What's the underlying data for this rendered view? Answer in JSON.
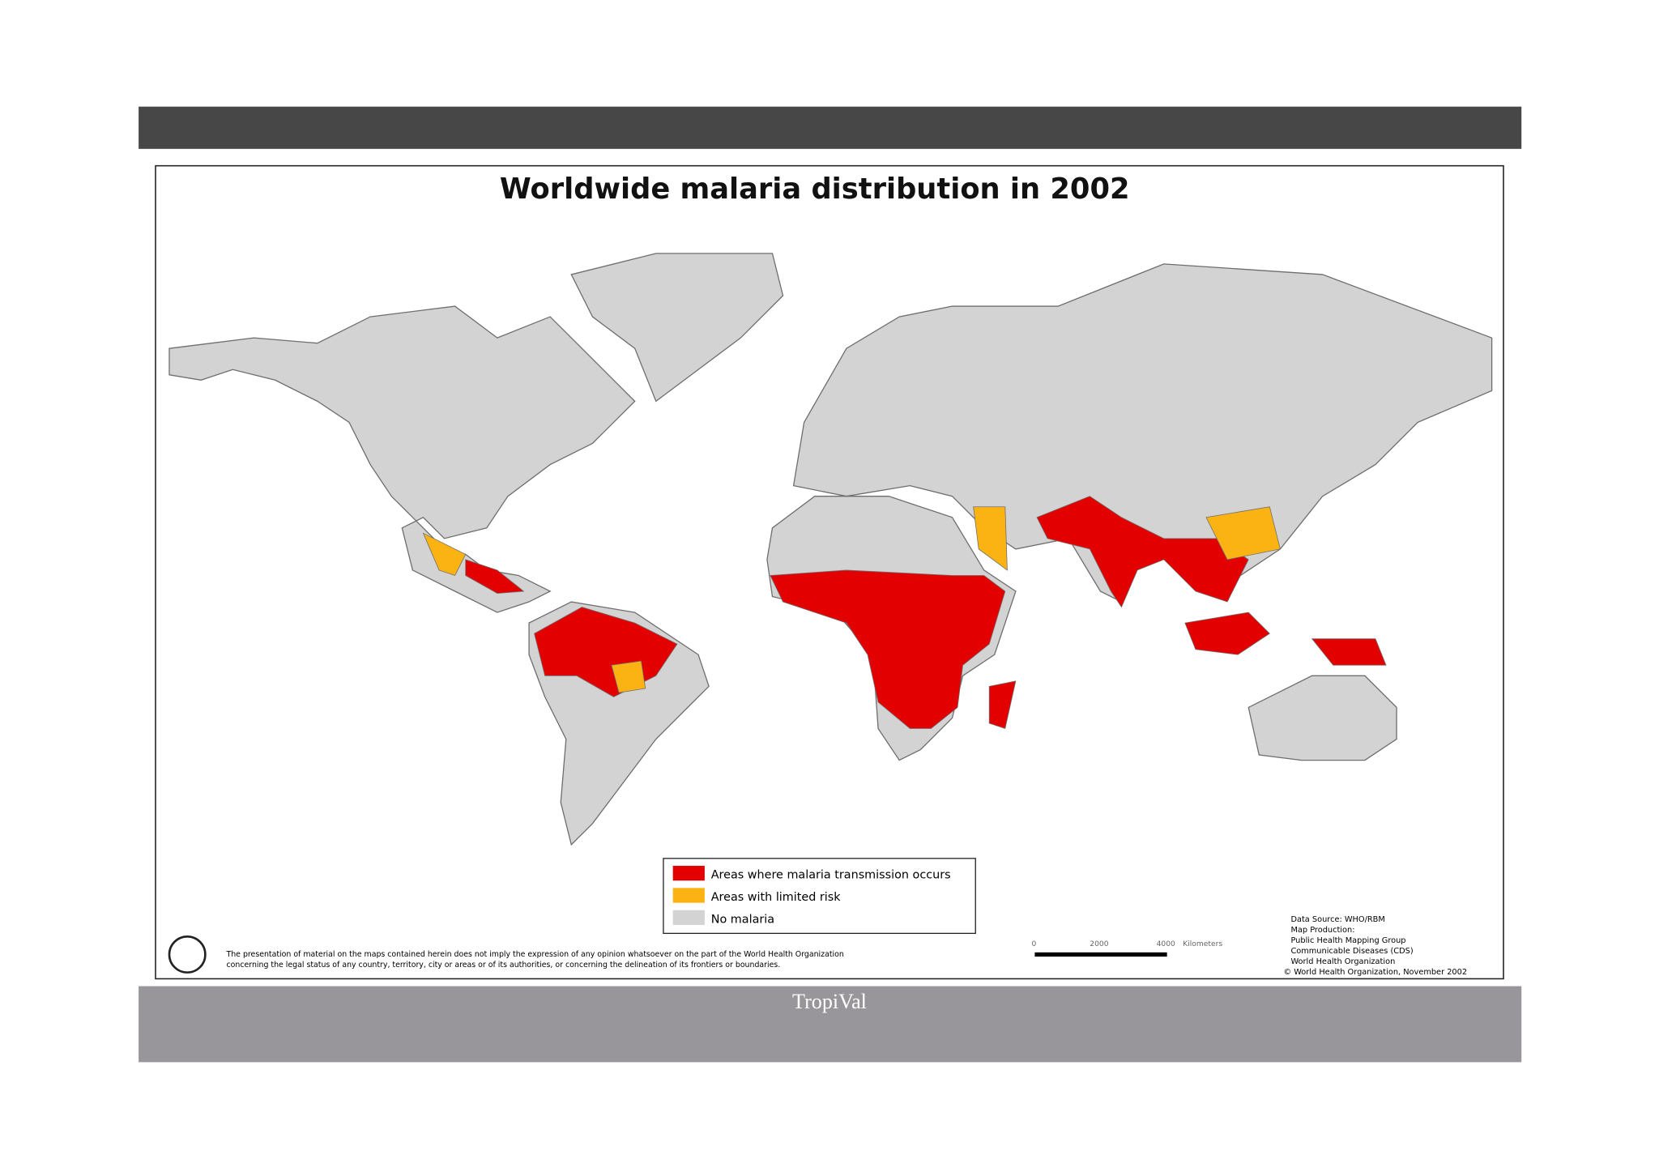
{
  "title": "Worldwide malaria distribution in 2002",
  "legend": [
    "Areas where malaria transmission occurs",
    "Areas with limited risk",
    "No malaria"
  ],
  "disclaimer": [
    "The presentation of material on the maps contained herein does not imply the expression of any opinion whatsoever on the part of the World Health Organization",
    "concerning the legal status of any country, territory, city or areas or of its authorities, or concerning the delineation of its frontiers or boundaries."
  ],
  "scale": {
    "labels": [
      "0",
      "2000",
      "4000",
      "Kilometers"
    ]
  },
  "credits": [
    "Data Source: WHO/RBM",
    "Map Production:",
    "Public Health Mapping Group",
    "Communicable Diseases (CDS)",
    "World Health Organization",
    "© World Health Organization, November 2002"
  ],
  "footer": "TropiVal"
}
